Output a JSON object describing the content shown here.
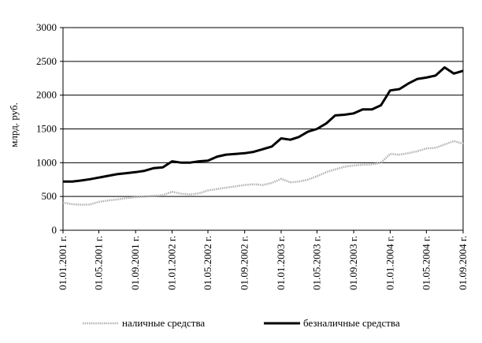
{
  "chart_data": {
    "type": "line",
    "title": "",
    "xlabel": "",
    "ylabel": "млрд. руб.",
    "ylim": [
      0,
      3000
    ],
    "yticks": [
      0,
      500,
      1000,
      1500,
      2000,
      2500,
      3000
    ],
    "yticks_labels": [
      "0",
      "500",
      "1000",
      "1500",
      "2000",
      "2500",
      "3000"
    ],
    "grid": "horizontal",
    "legend_position": "bottom",
    "x_tick_labels": [
      "01.01.2001 г.",
      "01.05.2001 г.",
      "01.09.2001 г.",
      "01.01.2002 г.",
      "01.05.2002 г.",
      "01.09.2002 г.",
      "01.01.2003 г.",
      "01.05.2003 г.",
      "01.09.2003 г.",
      "01.01.2004 г.",
      "01.05.2004 г.",
      "01.09.2004 г."
    ],
    "x_start": "01.01.2001",
    "x_end": "01.09.2004",
    "series": [
      {
        "name": "наличные средства",
        "style": "dotted",
        "color": "#b0b0b0",
        "points": [
          [
            "2001-01-01",
            410
          ],
          [
            "2001-02-01",
            385
          ],
          [
            "2001-03-01",
            378
          ],
          [
            "2001-04-01",
            380
          ],
          [
            "2001-05-01",
            420
          ],
          [
            "2001-06-01",
            440
          ],
          [
            "2001-07-01",
            455
          ],
          [
            "2001-08-01",
            475
          ],
          [
            "2001-09-01",
            490
          ],
          [
            "2001-10-01",
            500
          ],
          [
            "2001-11-01",
            510
          ],
          [
            "2001-12-01",
            520
          ],
          [
            "2002-01-01",
            570
          ],
          [
            "2002-02-01",
            540
          ],
          [
            "2002-03-01",
            530
          ],
          [
            "2002-04-01",
            545
          ],
          [
            "2002-05-01",
            590
          ],
          [
            "2002-06-01",
            610
          ],
          [
            "2002-07-01",
            630
          ],
          [
            "2002-08-01",
            650
          ],
          [
            "2002-09-01",
            670
          ],
          [
            "2002-10-01",
            680
          ],
          [
            "2002-11-01",
            670
          ],
          [
            "2002-12-01",
            700
          ],
          [
            "2003-01-01",
            760
          ],
          [
            "2003-02-01",
            710
          ],
          [
            "2003-03-01",
            720
          ],
          [
            "2003-04-01",
            750
          ],
          [
            "2003-05-01",
            800
          ],
          [
            "2003-06-01",
            860
          ],
          [
            "2003-07-01",
            900
          ],
          [
            "2003-08-01",
            940
          ],
          [
            "2003-09-01",
            960
          ],
          [
            "2003-10-01",
            970
          ],
          [
            "2003-11-01",
            975
          ],
          [
            "2003-12-01",
            1000
          ],
          [
            "2004-01-01",
            1130
          ],
          [
            "2004-02-01",
            1120
          ],
          [
            "2004-03-01",
            1140
          ],
          [
            "2004-04-01",
            1170
          ],
          [
            "2004-05-01",
            1210
          ],
          [
            "2004-06-01",
            1220
          ],
          [
            "2004-07-01",
            1270
          ],
          [
            "2004-08-01",
            1320
          ],
          [
            "2004-09-01",
            1280
          ]
        ]
      },
      {
        "name": "безналичные средства",
        "style": "solid",
        "color": "#000000",
        "points": [
          [
            "2001-01-01",
            720
          ],
          [
            "2001-02-01",
            720
          ],
          [
            "2001-03-01",
            735
          ],
          [
            "2001-04-01",
            755
          ],
          [
            "2001-05-01",
            780
          ],
          [
            "2001-06-01",
            805
          ],
          [
            "2001-07-01",
            830
          ],
          [
            "2001-08-01",
            845
          ],
          [
            "2001-09-01",
            860
          ],
          [
            "2001-10-01",
            880
          ],
          [
            "2001-11-01",
            920
          ],
          [
            "2001-12-01",
            930
          ],
          [
            "2002-01-01",
            1020
          ],
          [
            "2002-02-01",
            1000
          ],
          [
            "2002-03-01",
            1000
          ],
          [
            "2002-04-01",
            1020
          ],
          [
            "2002-05-01",
            1030
          ],
          [
            "2002-06-01",
            1090
          ],
          [
            "2002-07-01",
            1120
          ],
          [
            "2002-08-01",
            1130
          ],
          [
            "2002-09-01",
            1140
          ],
          [
            "2002-10-01",
            1160
          ],
          [
            "2002-11-01",
            1200
          ],
          [
            "2002-12-01",
            1240
          ],
          [
            "2003-01-01",
            1360
          ],
          [
            "2003-02-01",
            1340
          ],
          [
            "2003-03-01",
            1380
          ],
          [
            "2003-04-01",
            1460
          ],
          [
            "2003-05-01",
            1500
          ],
          [
            "2003-06-01",
            1580
          ],
          [
            "2003-07-01",
            1700
          ],
          [
            "2003-08-01",
            1710
          ],
          [
            "2003-09-01",
            1730
          ],
          [
            "2003-10-01",
            1790
          ],
          [
            "2003-11-01",
            1790
          ],
          [
            "2003-12-01",
            1850
          ],
          [
            "2004-01-01",
            2070
          ],
          [
            "2004-02-01",
            2090
          ],
          [
            "2004-03-01",
            2170
          ],
          [
            "2004-04-01",
            2240
          ],
          [
            "2004-05-01",
            2260
          ],
          [
            "2004-06-01",
            2290
          ],
          [
            "2004-07-01",
            2410
          ],
          [
            "2004-08-01",
            2320
          ],
          [
            "2004-09-01",
            2360
          ]
        ]
      }
    ]
  }
}
